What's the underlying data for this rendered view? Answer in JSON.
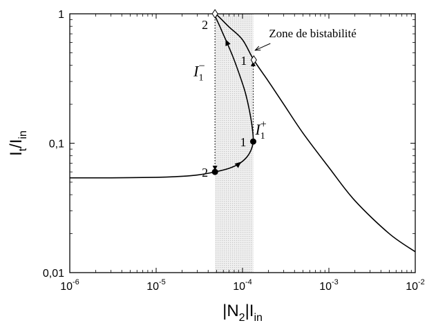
{
  "chart_data": {
    "type": "line",
    "x_scale": "log",
    "y_scale": "log",
    "xlim": [
      1e-06,
      0.01
    ],
    "ylim": [
      0.01,
      1
    ],
    "grid": false,
    "x_ticks": [
      {
        "value": 1e-06,
        "base": "10",
        "exp": "-6"
      },
      {
        "value": 1e-05,
        "base": "10",
        "exp": "-5"
      },
      {
        "value": 0.0001,
        "base": "10",
        "exp": "-4"
      },
      {
        "value": 0.001,
        "base": "10",
        "exp": "-3"
      },
      {
        "value": 0.01,
        "base": "10",
        "exp": "-2"
      }
    ],
    "y_ticks": [
      {
        "value": 1,
        "label": "1"
      },
      {
        "value": 0.1,
        "label": "0,1"
      },
      {
        "value": 0.01,
        "label": "0,01"
      }
    ],
    "xlabel": {
      "pre": "|N",
      "sub1": "2",
      "mid": "|I",
      "sub2": "in"
    },
    "ylabel": {
      "pre": "I",
      "sub1": "t",
      "mid": "/I",
      "sub2": "in"
    },
    "series": [
      {
        "points": [
          [
            1e-06,
            0.054
          ],
          [
            3e-06,
            0.054
          ],
          [
            1e-05,
            0.0545
          ],
          [
            2e-05,
            0.0555
          ],
          [
            3e-05,
            0.0568
          ],
          [
            4.8e-05,
            0.06
          ],
          [
            7e-05,
            0.064
          ],
          [
            9e-05,
            0.069
          ],
          [
            0.00011,
            0.077
          ],
          [
            0.000125,
            0.088
          ],
          [
            0.000133,
            0.103
          ],
          [
            0.00013,
            0.13
          ],
          [
            0.00012,
            0.18
          ],
          [
            0.000107,
            0.25
          ],
          [
            9.2e-05,
            0.34
          ],
          [
            7.8e-05,
            0.46
          ],
          [
            6.6e-05,
            0.6
          ],
          [
            5.6e-05,
            0.77
          ],
          [
            4.8e-05,
            1.0
          ],
          [
            7e-05,
            0.79
          ],
          [
            0.0001,
            0.63
          ],
          [
            0.000135,
            0.44
          ],
          [
            0.0002,
            0.3
          ],
          [
            0.0003,
            0.2
          ],
          [
            0.0005,
            0.12
          ],
          [
            0.001,
            0.065
          ],
          [
            0.002,
            0.036
          ],
          [
            0.005,
            0.02
          ],
          [
            0.01,
            0.0145
          ]
        ]
      }
    ],
    "points": [
      {
        "x": 4.8e-05,
        "y": 0.06,
        "marker": "dot",
        "label": "2"
      },
      {
        "x": 0.000133,
        "y": 0.103,
        "marker": "dot",
        "label": "1"
      },
      {
        "x": 4.8e-05,
        "y": 1.0,
        "marker": "diamond",
        "label": "2"
      },
      {
        "x": 0.000135,
        "y": 0.44,
        "marker": "diamond",
        "label": "1"
      }
    ],
    "transitions": [
      {
        "x": 4.8e-05,
        "from": 1.0,
        "to": 0.06,
        "label": {
          "sym": "I",
          "sub": "1",
          "sup": "−"
        }
      },
      {
        "x": 0.000133,
        "from": 0.103,
        "to": 0.44,
        "label": {
          "sym": "I",
          "sub": "1",
          "sup": "+"
        }
      }
    ],
    "flow_arrows": [
      {
        "at": [
          9e-05,
          0.069
        ],
        "toward": [
          0.00011,
          0.077
        ]
      },
      {
        "at": [
          6.6e-05,
          0.6
        ],
        "toward": [
          5.6e-05,
          0.77
        ]
      }
    ],
    "bistable_region": {
      "x_from": 4.8e-05,
      "x_to": 0.000133
    },
    "annotation": {
      "text": "Zone de bistabilité",
      "target": [
        0.000135,
        0.44
      ]
    }
  }
}
